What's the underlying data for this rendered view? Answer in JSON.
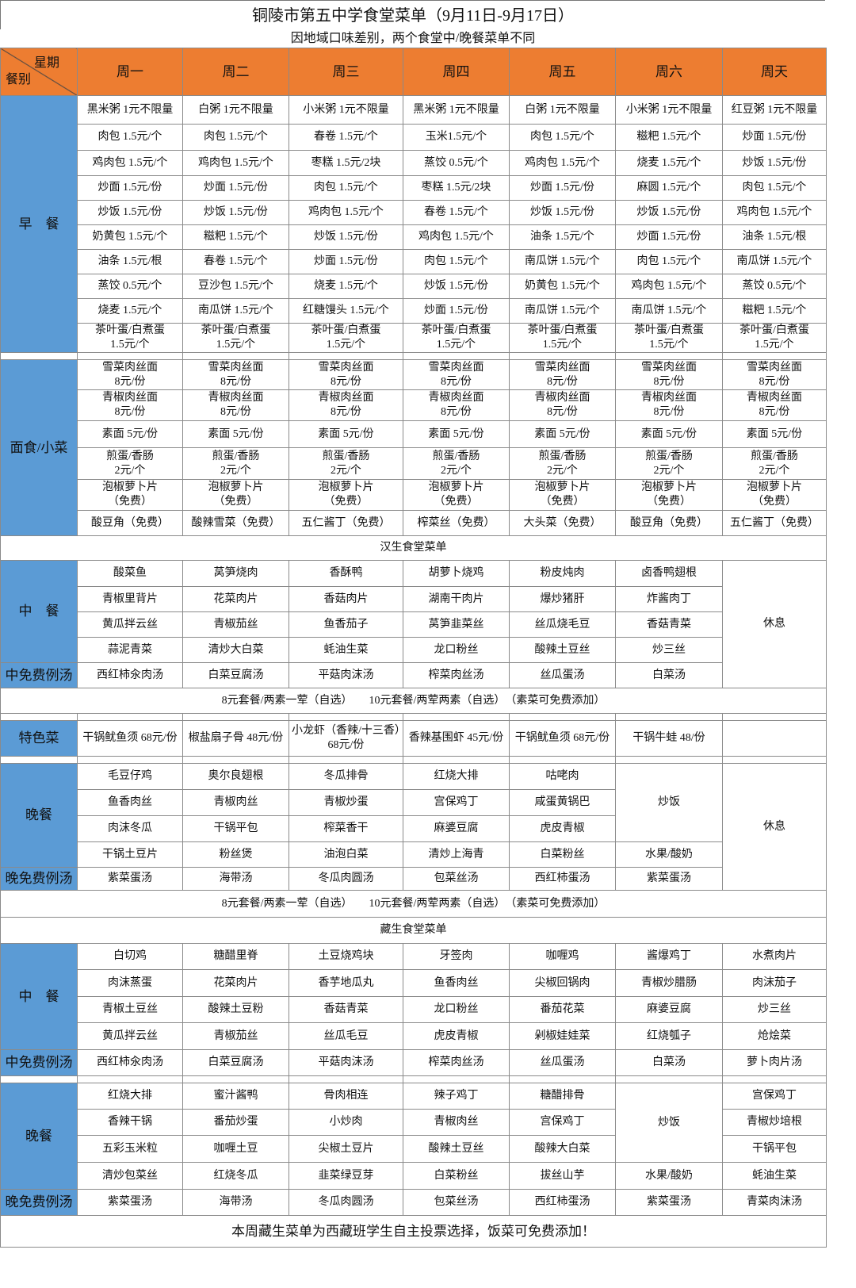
{
  "title": "铜陵市第五中学食堂菜单（9月11日-9月17日）",
  "subtitle": "因地域口味差别，两个食堂中/晚餐菜单不同",
  "colors": {
    "header": "#ed7d31",
    "label": "#5b9bd5"
  },
  "corner": {
    "week": "星期",
    "meal": "餐别"
  },
  "days": [
    "周一",
    "周二",
    "周三",
    "周四",
    "周五",
    "周六",
    "周天"
  ],
  "breakfast": {
    "label": "早　餐",
    "rows": [
      [
        "黑米粥 1元不限量",
        "白粥 1元不限量",
        "小米粥 1元不限量",
        "黑米粥 1元不限量",
        "白粥 1元不限量",
        "小米粥 1元不限量",
        "红豆粥 1元不限量"
      ],
      [
        "肉包 1.5元/个",
        "肉包 1.5元/个",
        "春卷 1.5元/个",
        "玉米1.5元/个",
        "肉包 1.5元/个",
        "糍粑 1.5元/个",
        "炒面 1.5元/份"
      ],
      [
        "鸡肉包 1.5元/个",
        "鸡肉包 1.5元/个",
        "枣糕 1.5元/2块",
        "蒸饺 0.5元/个",
        "鸡肉包 1.5元/个",
        "烧麦 1.5元/个",
        "炒饭 1.5元/份"
      ],
      [
        "炒面 1.5元/份",
        "炒面 1.5元/份",
        "肉包 1.5元/个",
        "枣糕 1.5元/2块",
        "炒面 1.5元/份",
        "麻圆 1.5元/个",
        "肉包 1.5元/个"
      ],
      [
        "炒饭 1.5元/份",
        "炒饭 1.5元/份",
        "鸡肉包 1.5元/个",
        "春卷 1.5元/个",
        "炒饭 1.5元/份",
        "炒饭 1.5元/份",
        "鸡肉包 1.5元/个"
      ],
      [
        "奶黄包 1.5元/个",
        "糍粑 1.5元/个",
        "炒饭 1.5元/份",
        "鸡肉包 1.5元/个",
        "油条 1.5元/个",
        "炒面 1.5元/份",
        "油条 1.5元/根"
      ],
      [
        "油条 1.5元/根",
        "春卷 1.5元/个",
        "炒面 1.5元/份",
        "肉包 1.5元/个",
        "南瓜饼 1.5元/个",
        "肉包 1.5元/个",
        "南瓜饼 1.5元/个"
      ],
      [
        "蒸饺 0.5元/个",
        "豆沙包 1.5元/个",
        "烧麦 1.5元/个",
        "炒饭 1.5元/份",
        "奶黄包 1.5元/个",
        "鸡肉包 1.5元/个",
        "蒸饺 0.5元/个"
      ],
      [
        "烧麦 1.5元/个",
        "南瓜饼 1.5元/个",
        "红糖馒头 1.5元/个",
        "炒面 1.5元/份",
        "南瓜饼 1.5元/个",
        "南瓜饼 1.5元/个",
        "糍粑 1.5元/个"
      ],
      [
        "茶叶蛋/白煮蛋\n1.5元/个",
        "茶叶蛋/白煮蛋\n1.5元/个",
        "茶叶蛋/白煮蛋\n1.5元/个",
        "茶叶蛋/白煮蛋\n1.5元/个",
        "茶叶蛋/白煮蛋\n1.5元/个",
        "茶叶蛋/白煮蛋\n1.5元/个",
        "茶叶蛋/白煮蛋\n1.5元/个"
      ]
    ]
  },
  "noodles": {
    "label": "面食/小菜",
    "rows": [
      [
        "雪菜肉丝面\n8元/份",
        "雪菜肉丝面\n8元/份",
        "雪菜肉丝面\n8元/份",
        "雪菜肉丝面\n8元/份",
        "雪菜肉丝面\n8元/份",
        "雪菜肉丝面\n8元/份",
        "雪菜肉丝面\n8元/份"
      ],
      [
        "青椒肉丝面\n8元/份",
        "青椒肉丝面\n8元/份",
        "青椒肉丝面\n8元/份",
        "青椒肉丝面\n8元/份",
        "青椒肉丝面\n8元/份",
        "青椒肉丝面\n8元/份",
        "青椒肉丝面\n8元/份"
      ],
      [
        "素面 5元/份",
        "素面 5元/份",
        "素面 5元/份",
        "素面 5元/份",
        "素面 5元/份",
        "素面 5元/份",
        "素面 5元/份"
      ],
      [
        "煎蛋/香肠\n2元/个",
        "煎蛋/香肠\n2元/个",
        "煎蛋/香肠\n2元/个",
        "煎蛋/香肠\n2元/个",
        "煎蛋/香肠\n2元/个",
        "煎蛋/香肠\n2元/个",
        "煎蛋/香肠\n2元/个"
      ],
      [
        "泡椒萝卜片\n（免费）",
        "泡椒萝卜片\n（免费）",
        "泡椒萝卜片\n（免费）",
        "泡椒萝卜片\n（免费）",
        "泡椒萝卜片\n（免费）",
        "泡椒萝卜片\n（免费）",
        "泡椒萝卜片\n（免费）"
      ],
      [
        "酸豆角（免费）",
        "酸辣雪菜（免费）",
        "五仁酱丁（免费）",
        "榨菜丝（免费）",
        "大头菜（免费）",
        "酸豆角（免费）",
        "五仁酱丁（免费）"
      ]
    ]
  },
  "hansheng": {
    "title": "汉生食堂菜单",
    "lunch": {
      "label": "中　餐",
      "soup_label": "中免费例汤",
      "rows": [
        [
          "酸菜鱼",
          "莴笋烧肉",
          "香酥鸭",
          "胡萝卜烧鸡",
          "粉皮炖肉",
          "卤香鸭翅根",
          "休息"
        ],
        [
          "青椒里背片",
          "花菜肉片",
          "香菇肉片",
          "湖南干肉片",
          "爆炒猪肝",
          "炸酱肉丁",
          null
        ],
        [
          "黄瓜拌云丝",
          "青椒茄丝",
          "鱼香茄子",
          "莴笋韭菜丝",
          "丝瓜烧毛豆",
          "香菇青菜",
          null
        ],
        [
          "蒜泥青菜",
          "清炒大白菜",
          "蚝油生菜",
          "龙口粉丝",
          "酸辣土豆丝",
          "炒三丝",
          null
        ]
      ],
      "soup": [
        "西红柿汆肉汤",
        "白菜豆腐汤",
        "平菇肉沫汤",
        "榨菜肉丝汤",
        "丝瓜蛋汤",
        "白菜汤",
        null
      ]
    },
    "set_meal": "8元套餐/两素一荤（自选）　　10元套餐/两荤两素（自选）　（素菜可免费添加）",
    "special": {
      "label": "特色菜",
      "items": [
        "干锅鱿鱼须 68元/份",
        "椒盐扇子骨 48元/份",
        "小龙虾（香辣/十三香）68元/份",
        "香辣基围虾 45元/份",
        "干锅鱿鱼须 68元/份",
        "干锅牛蛙 48/份",
        ""
      ]
    },
    "dinner": {
      "label": "晚餐",
      "soup_label": "晚免费例汤",
      "rows": [
        [
          "毛豆仔鸡",
          "奥尔良翅根",
          "冬瓜排骨",
          "红烧大排",
          "咕咾肉",
          "炒饭",
          "休息"
        ],
        [
          "鱼香肉丝",
          "青椒肉丝",
          "青椒炒蛋",
          "宫保鸡丁",
          "咸蛋黄锅巴",
          null,
          null
        ],
        [
          "肉沫冬瓜",
          "干锅平包",
          "榨菜香干",
          "麻婆豆腐",
          "虎皮青椒",
          null,
          null
        ],
        [
          "干锅土豆片",
          "粉丝煲",
          "油泡白菜",
          "清炒上海青",
          "白菜粉丝",
          "水果/酸奶",
          null
        ]
      ],
      "soup": [
        "紫菜蛋汤",
        "海带汤",
        "冬瓜肉圆汤",
        "包菜丝汤",
        "西红柿蛋汤",
        "紫菜蛋汤",
        null
      ]
    },
    "set_meal_2": "8元套餐/两素一荤（自选）　　10元套餐/两荤两素（自选）　（素菜可免费添加）"
  },
  "zangsheng": {
    "title": "藏生食堂菜单",
    "lunch": {
      "label": "中　餐",
      "soup_label": "中免费例汤",
      "rows": [
        [
          "白切鸡",
          "糖醋里脊",
          "土豆烧鸡块",
          "牙签肉",
          "咖喱鸡",
          "酱爆鸡丁",
          "水煮肉片"
        ],
        [
          "肉沫蒸蛋",
          "花菜肉片",
          "香芋地瓜丸",
          "鱼香肉丝",
          "尖椒回锅肉",
          "青椒炒腊肠",
          "肉沫茄子"
        ],
        [
          "青椒土豆丝",
          "酸辣土豆粉",
          "香菇青菜",
          "龙口粉丝",
          "番茄花菜",
          "麻婆豆腐",
          "炒三丝"
        ],
        [
          "黄瓜拌云丝",
          "青椒茄丝",
          "丝瓜毛豆",
          "虎皮青椒",
          "剁椒娃娃菜",
          "红烧瓠子",
          "炝烩菜"
        ]
      ],
      "soup": [
        "西红柿汆肉汤",
        "白菜豆腐汤",
        "平菇肉沫汤",
        "榨菜肉丝汤",
        "丝瓜蛋汤",
        "白菜汤",
        "萝卜肉片汤"
      ]
    },
    "dinner": {
      "label": "晚餐",
      "soup_label": "晚免费例汤",
      "rows": [
        [
          "红烧大排",
          "蜜汁酱鸭",
          "骨肉相连",
          "辣子鸡丁",
          "糖醋排骨",
          "炒饭",
          "宫保鸡丁"
        ],
        [
          "香辣干锅",
          "番茄炒蛋",
          "小炒肉",
          "青椒肉丝",
          "宫保鸡丁",
          null,
          "青椒炒培根"
        ],
        [
          "五彩玉米粒",
          "咖喱土豆",
          "尖椒土豆片",
          "酸辣土豆丝",
          "酸辣大白菜",
          null,
          "干锅平包"
        ],
        [
          "清炒包菜丝",
          "红烧冬瓜",
          "韭菜绿豆芽",
          "白菜粉丝",
          "拔丝山芋",
          "水果/酸奶",
          "蚝油生菜"
        ]
      ],
      "soup": [
        "紫菜蛋汤",
        "海带汤",
        "冬瓜肉圆汤",
        "包菜丝汤",
        "西红柿蛋汤",
        "紫菜蛋汤",
        "青菜肉沫汤"
      ]
    }
  },
  "footer": "本周藏生菜单为西藏班学生自主投票选择，饭菜可免费添加！"
}
